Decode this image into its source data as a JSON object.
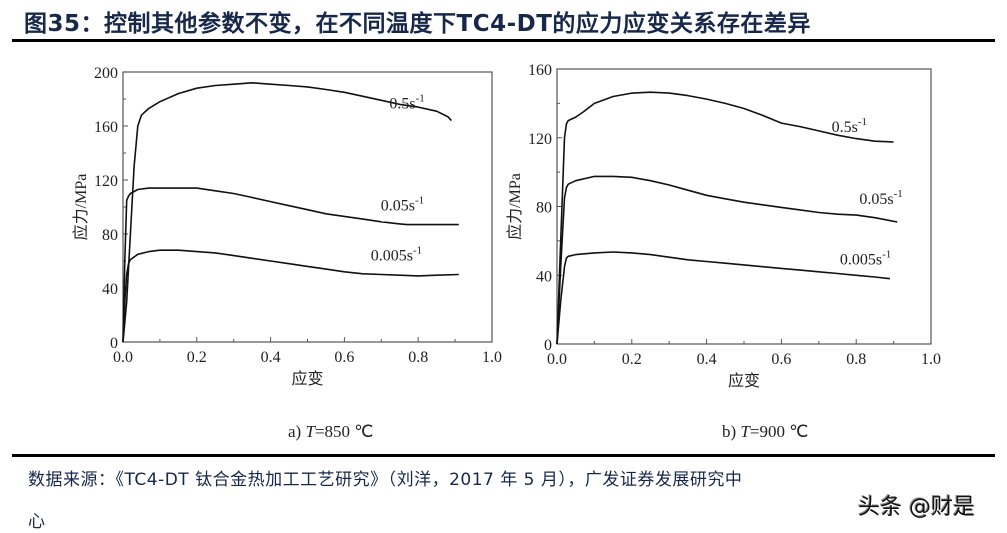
{
  "title": "图35：控制其他参数不变，在不同温度下TC4-DT的应力应变关系存在差异",
  "source_line1": "数据来源：《TC4-DT 钛合金热加工工艺研究》（刘洋，2017 年 5 月），广发证券发展研究中",
  "source_line2": "心",
  "watermark": "头条 @财是",
  "chart_data": [
    {
      "type": "line",
      "caption_prefix": "a) ",
      "caption_var": "T",
      "caption_suffix": "=850 ℃",
      "title": "",
      "xlabel": "应变",
      "ylabel": "应力/MPa",
      "xlim": [
        0.0,
        1.0
      ],
      "ylim": [
        0,
        200
      ],
      "xticks": [
        "0.0",
        "0.2",
        "0.4",
        "0.6",
        "0.8",
        "1.0"
      ],
      "yticks": [
        "0",
        "40",
        "80",
        "120",
        "160",
        "200"
      ],
      "grid": false,
      "legend": "inline labels at curve ends",
      "series": [
        {
          "name": "0.5s-1",
          "label": "0.5s",
          "x": [
            0.0,
            0.01,
            0.02,
            0.03,
            0.04,
            0.05,
            0.07,
            0.1,
            0.15,
            0.2,
            0.25,
            0.3,
            0.35,
            0.4,
            0.45,
            0.5,
            0.55,
            0.6,
            0.65,
            0.7,
            0.75,
            0.8,
            0.85,
            0.88,
            0.89
          ],
          "values": [
            0,
            30,
            80,
            130,
            160,
            168,
            173,
            178,
            184,
            188,
            190,
            191,
            192,
            191,
            190,
            189,
            187,
            185,
            182,
            179,
            176,
            174,
            171,
            167,
            164
          ]
        },
        {
          "name": "0.05s-1",
          "label": "0.05s",
          "x": [
            0.0,
            0.005,
            0.01,
            0.015,
            0.02,
            0.04,
            0.07,
            0.1,
            0.15,
            0.2,
            0.25,
            0.3,
            0.35,
            0.4,
            0.45,
            0.5,
            0.55,
            0.6,
            0.65,
            0.7,
            0.75,
            0.77,
            0.8,
            0.85,
            0.91
          ],
          "values": [
            0,
            60,
            105,
            108,
            110,
            113,
            114,
            114,
            114,
            114,
            112,
            110,
            107,
            104,
            101,
            98,
            95,
            93,
            91,
            89,
            87.5,
            87,
            87,
            87,
            87
          ]
        },
        {
          "name": "0.005s-1",
          "label": "0.005s",
          "x": [
            0.0,
            0.005,
            0.01,
            0.015,
            0.02,
            0.04,
            0.07,
            0.1,
            0.15,
            0.2,
            0.25,
            0.3,
            0.35,
            0.4,
            0.45,
            0.5,
            0.55,
            0.6,
            0.65,
            0.7,
            0.75,
            0.8,
            0.85,
            0.91
          ],
          "values": [
            0,
            30,
            50,
            58,
            61,
            65,
            67,
            68,
            68,
            67,
            66,
            64,
            62,
            60,
            58,
            56,
            54,
            52,
            50.5,
            50,
            49.5,
            49,
            49.5,
            50
          ]
        }
      ]
    },
    {
      "type": "line",
      "caption_prefix": "b) ",
      "caption_var": "T",
      "caption_suffix": "=900 ℃",
      "title": "",
      "xlabel": "应变",
      "ylabel": "应力/MPa",
      "xlim": [
        0.0,
        1.0
      ],
      "ylim": [
        0,
        160
      ],
      "xticks": [
        "0.0",
        "0.2",
        "0.4",
        "0.6",
        "0.8",
        "1.0"
      ],
      "yticks": [
        "0",
        "40",
        "80",
        "120",
        "160"
      ],
      "grid": false,
      "legend": "inline labels at curve ends",
      "series": [
        {
          "name": "0.5s-1",
          "label": "0.5s",
          "x": [
            0.0,
            0.01,
            0.02,
            0.025,
            0.03,
            0.05,
            0.07,
            0.1,
            0.15,
            0.2,
            0.25,
            0.3,
            0.35,
            0.4,
            0.45,
            0.5,
            0.55,
            0.6,
            0.65,
            0.7,
            0.75,
            0.8,
            0.85,
            0.9
          ],
          "values": [
            0,
            60,
            120,
            128,
            130,
            132,
            135,
            140,
            144,
            146,
            146.5,
            146,
            144.5,
            142.5,
            140,
            137,
            133,
            128.5,
            126.5,
            124,
            121.5,
            119.5,
            118,
            117.5
          ]
        },
        {
          "name": "0.05s-1",
          "label": "0.05s",
          "x": [
            0.0,
            0.01,
            0.02,
            0.025,
            0.03,
            0.05,
            0.1,
            0.15,
            0.2,
            0.25,
            0.3,
            0.35,
            0.4,
            0.45,
            0.5,
            0.55,
            0.6,
            0.65,
            0.7,
            0.75,
            0.8,
            0.85,
            0.91
          ],
          "values": [
            0,
            45,
            85,
            91,
            93,
            95,
            97.5,
            97.5,
            97,
            95,
            92.5,
            89.5,
            86.5,
            84.5,
            82.5,
            81,
            79.5,
            78,
            76.5,
            75.5,
            75,
            73.5,
            71
          ]
        },
        {
          "name": "0.005s-1",
          "label": "0.005s",
          "x": [
            0.0,
            0.01,
            0.02,
            0.025,
            0.03,
            0.05,
            0.1,
            0.15,
            0.2,
            0.25,
            0.3,
            0.35,
            0.4,
            0.45,
            0.5,
            0.55,
            0.6,
            0.65,
            0.7,
            0.75,
            0.8,
            0.85,
            0.89
          ],
          "values": [
            0,
            25,
            45,
            50,
            51,
            52,
            53,
            53.5,
            53,
            52,
            50.5,
            49,
            48,
            47,
            46,
            45,
            44,
            43,
            42,
            41,
            40,
            39,
            38
          ]
        }
      ]
    }
  ]
}
